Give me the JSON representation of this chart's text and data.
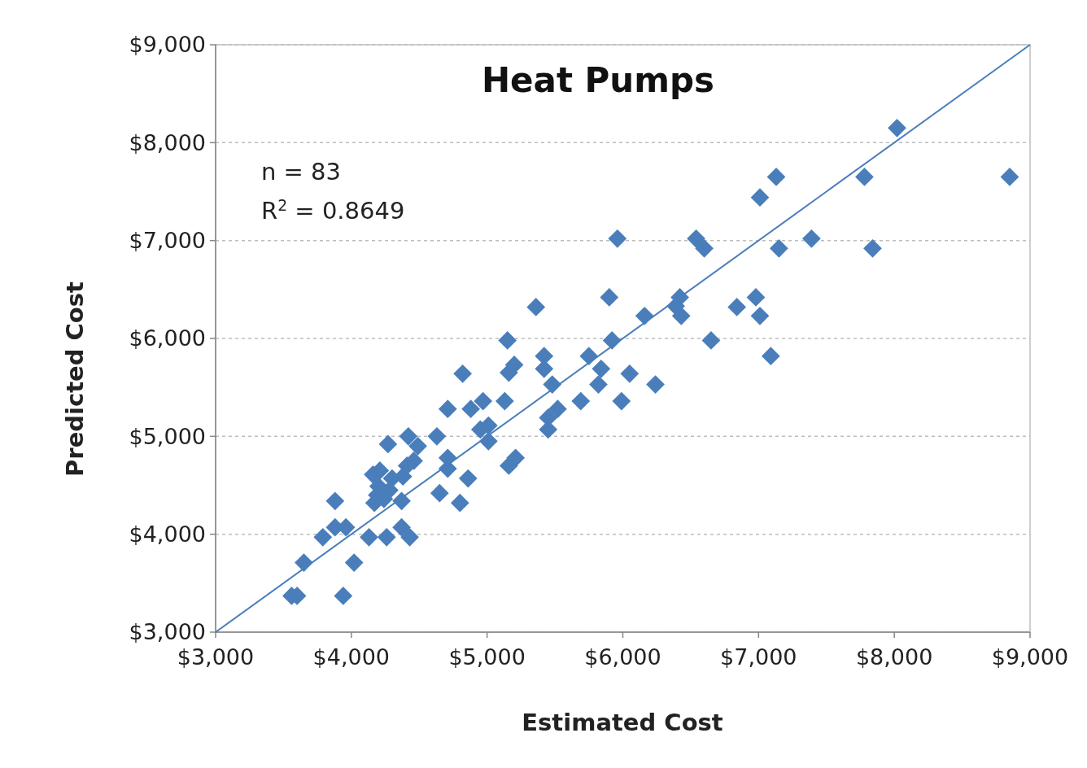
{
  "chart_data": {
    "type": "scatter",
    "title": "Heat Pumps",
    "xlabel": "Estimated Cost",
    "ylabel": "Predicted Cost",
    "annotations": [
      "n = 83",
      "R$^{2}$ = 0.8649"
    ],
    "xlim": [
      3000,
      9000
    ],
    "ylim": [
      3000,
      9000
    ],
    "xticks": [
      {
        "value": 3000,
        "label": "$3,000"
      },
      {
        "value": 4000,
        "label": "$4,000"
      },
      {
        "value": 5000,
        "label": "$5,000"
      },
      {
        "value": 6000,
        "label": "$6,000"
      },
      {
        "value": 7000,
        "label": "$7,000"
      },
      {
        "value": 8000,
        "label": "$8,000"
      },
      {
        "value": 9000,
        "label": "$9,000"
      }
    ],
    "yticks": [
      {
        "value": 3000,
        "label": "$3,000"
      },
      {
        "value": 4000,
        "label": "$4,000"
      },
      {
        "value": 5000,
        "label": "$5,000"
      },
      {
        "value": 6000,
        "label": "$6,000"
      },
      {
        "value": 7000,
        "label": "$7,000"
      },
      {
        "value": 8000,
        "label": "$8,000"
      },
      {
        "value": 9000,
        "label": "$9,000"
      }
    ],
    "grid": "y",
    "marker": "diamond",
    "series": [
      {
        "type": "scatter",
        "color": "#4a7ebb",
        "x": [
          3560,
          3600,
          3940,
          3650,
          4020,
          3790,
          3880,
          3960,
          3880,
          4130,
          4260,
          4430,
          4370,
          4170,
          4240,
          4370,
          4200,
          4280,
          4210,
          4300,
          4380,
          4270,
          4410,
          4460,
          4420,
          4490,
          4650,
          4800,
          4860,
          4710,
          4710,
          4630,
          4710,
          4820,
          4880,
          4970,
          4950,
          5010,
          5010,
          5130,
          5150,
          5160,
          5200,
          5160,
          5210,
          5360,
          5420,
          5420,
          5450,
          5450,
          5480,
          5520,
          5690,
          5750,
          5840,
          5820,
          5900,
          5920,
          5960,
          5990,
          6050,
          6240,
          6160,
          6420,
          6390,
          6430,
          6540,
          6600,
          6650,
          6840,
          6980,
          7010,
          7010,
          7130,
          7150,
          7090,
          7390,
          7780,
          7840,
          8020,
          8850,
          4160,
          4190
        ],
        "values": [
          3370,
          3370,
          3370,
          3710,
          3710,
          3970,
          4070,
          4070,
          4340,
          3970,
          3970,
          3970,
          4070,
          4320,
          4360,
          4340,
          4490,
          4450,
          4650,
          4570,
          4590,
          4920,
          4700,
          4750,
          5000,
          4900,
          4420,
          4320,
          4570,
          4670,
          4780,
          5000,
          5280,
          5640,
          5280,
          5360,
          5070,
          4950,
          5110,
          5360,
          5980,
          5650,
          5730,
          4700,
          4780,
          6320,
          5820,
          5690,
          5070,
          5190,
          5530,
          5280,
          5360,
          5820,
          5690,
          5530,
          6420,
          5980,
          7020,
          5360,
          5640,
          5530,
          6230,
          6420,
          6330,
          6230,
          7020,
          6920,
          5980,
          6320,
          6420,
          6230,
          7440,
          7650,
          6920,
          5820,
          7020,
          7650,
          6920,
          8150,
          7650,
          4610,
          4400
        ]
      },
      {
        "type": "line",
        "color": "#4a7ebb",
        "marker": "none",
        "x": [
          3000,
          9000
        ],
        "values": [
          3000,
          9000
        ]
      }
    ]
  }
}
